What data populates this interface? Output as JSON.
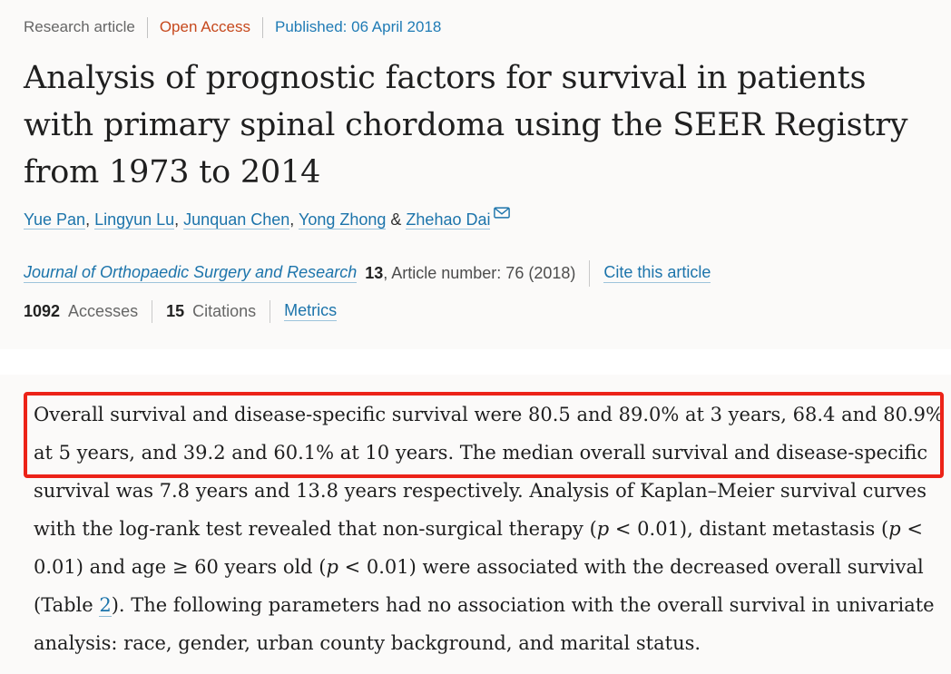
{
  "colors": {
    "page_background": "#fbfaf9",
    "highlight_red": "#ec2318",
    "link_blue": "#1c74ab",
    "open_access_orange": "#c6481c",
    "published_blue": "#1f7bb5"
  },
  "header": {
    "meta": {
      "article_type": "Research article",
      "access": "Open Access",
      "published": "Published: 06 April 2018"
    },
    "title_lines": [
      "Analysis of prognostic factors for survival in patients",
      "with primary spinal chordoma using the SEER Registry",
      "from 1973 to 2014"
    ],
    "authors": [
      {
        "name": "Yue Pan",
        "sep": ", "
      },
      {
        "name": "Lingyun Lu",
        "sep": ", "
      },
      {
        "name": "Junquan Chen",
        "sep": ", "
      },
      {
        "name": "Yong Zhong",
        "sep": " & "
      },
      {
        "name": "Zhehao Dai",
        "sep": ""
      }
    ],
    "email_icon": "envelope-icon",
    "journal": {
      "name": "Journal of Orthopaedic Surgery and Research",
      "volume": "13",
      "article_info": ", Article number: 76 (2018)",
      "cite_link": "Cite this article"
    },
    "metrics": {
      "accesses_count": "1092",
      "accesses_label": "Accesses",
      "citations_count": "15",
      "citations_label": "Citations",
      "metrics_link": "Metrics"
    }
  },
  "abstract": {
    "highlight_lines": [
      0,
      1
    ],
    "lines": [
      [
        {
          "t": "Overall survival and disease-specific survival were 80.5 and 89.0% at 3 years, 68.4 and 80.9%"
        }
      ],
      [
        {
          "t": "at 5 years, and 39.2 and 60.1% at 10 years. The median overall survival and disease-specific"
        }
      ],
      [
        {
          "t": "survival was 7.8 years and 13.8 years respectively. Analysis of Kaplan–Meier survival curves"
        }
      ],
      [
        {
          "t": "with the log-rank test revealed that non-surgical therapy ("
        },
        {
          "t": "p",
          "i": true
        },
        {
          "t": " < 0.01), distant metastasis ("
        },
        {
          "t": "p",
          "i": true
        },
        {
          "t": " <"
        }
      ],
      [
        {
          "t": "0.01) and age ≥ 60 years old ("
        },
        {
          "t": "p",
          "i": true
        },
        {
          "t": " < 0.01) were associated with the decreased overall survival"
        }
      ],
      [
        {
          "t": "(Table "
        },
        {
          "t": "2",
          "link": true
        },
        {
          "t": "). The following parameters had no association with the overall survival in univariate"
        }
      ],
      [
        {
          "t": "analysis: race, gender, urban county background, and marital status."
        }
      ]
    ]
  }
}
